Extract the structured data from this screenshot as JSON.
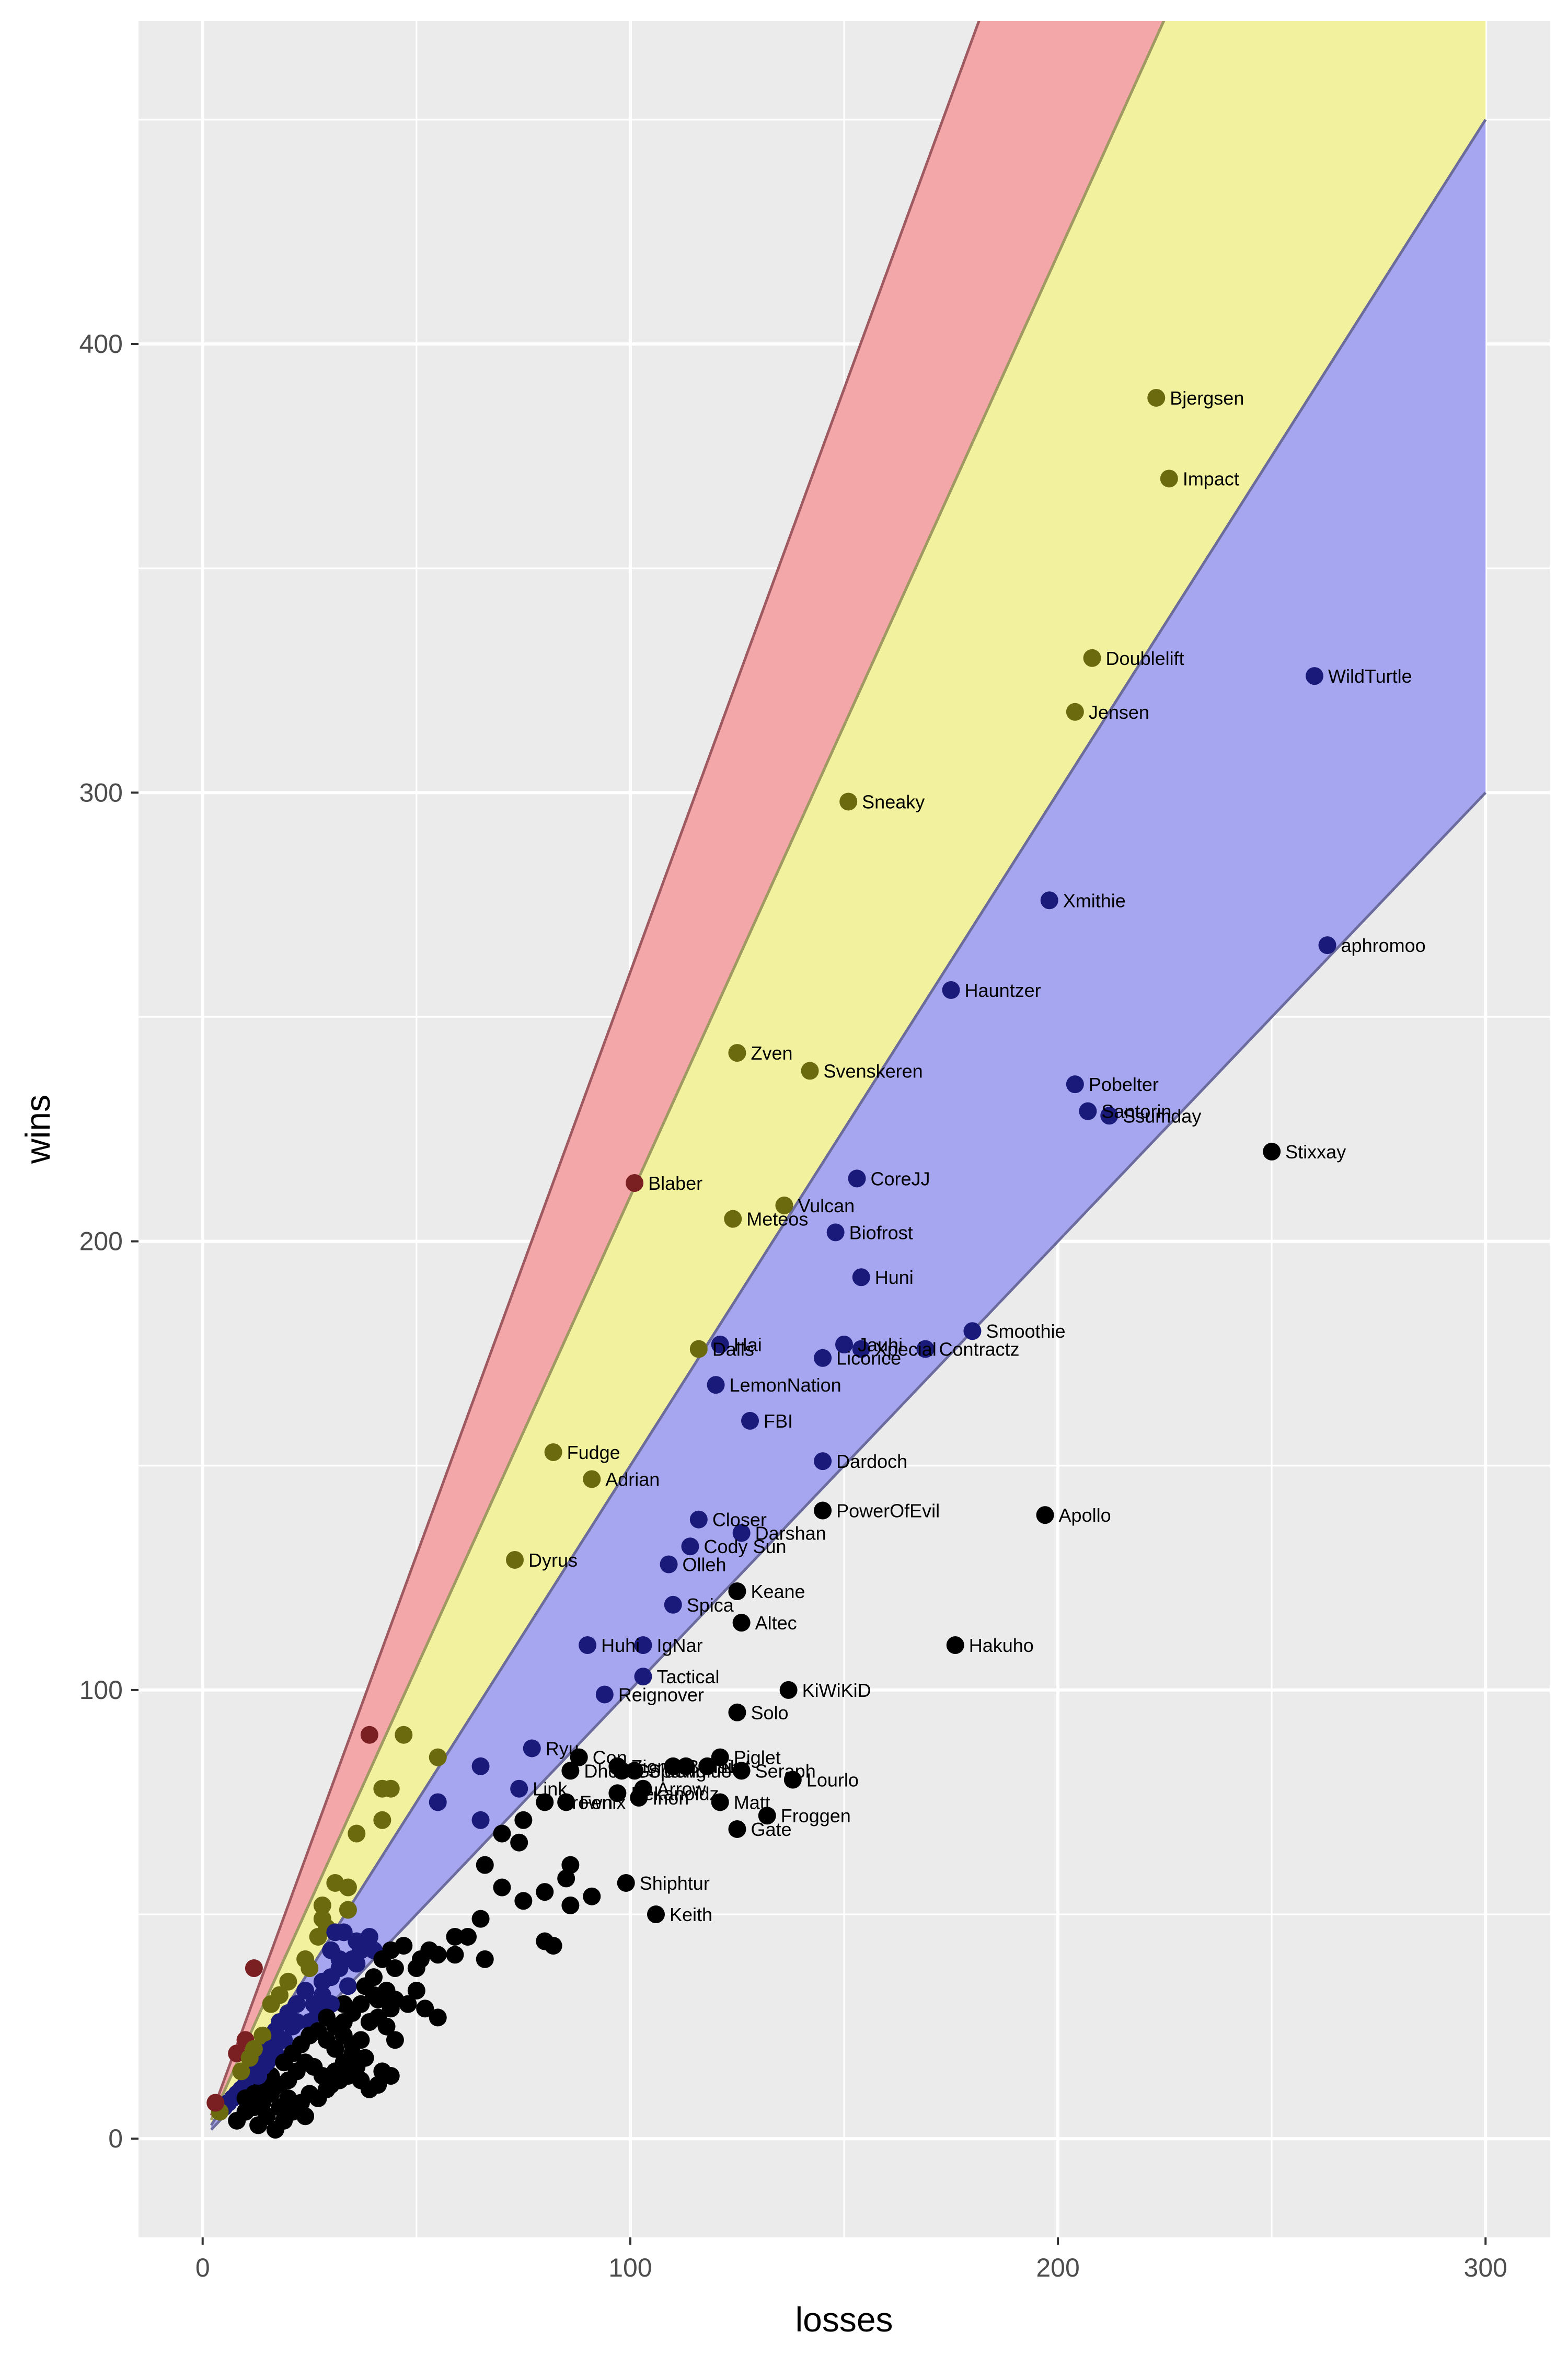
{
  "chart_data": {
    "type": "scatter",
    "title": "",
    "xlabel": "losses",
    "ylabel": "wins",
    "xlim": [
      -15,
      315
    ],
    "ylim": [
      -22,
      472
    ],
    "x_ticks": [
      0,
      100,
      200,
      300
    ],
    "y_ticks": [
      0,
      100,
      200,
      300,
      400
    ],
    "grid": true,
    "legend": "none",
    "colors": {
      "panel": "#ebebeb",
      "grid": "#ffffff",
      "red_band": "#f4a7a8",
      "yellow_band": "#f2f19e",
      "blue_band": "#a6a6f0",
      "red_line": "#9e5a60",
      "yellow_line": "#9e9a62",
      "blue_line": "#6b6b9e",
      "point_red": "#7a1f22",
      "point_yellow": "#6b6a0f",
      "point_blue": "#1a1a7a",
      "point_black": "#000000"
    },
    "bands": [
      {
        "name": "",
        "color": "red_band",
        "slope_low": 2.1,
        "slope_high": 2.6,
        "line": "red_line"
      },
      {
        "name": "",
        "color": "yellow_band",
        "slope_low": 1.5,
        "slope_high": 2.1,
        "line": "yellow_line"
      },
      {
        "name": "",
        "color": "blue_band",
        "slope_low": 1.0,
        "slope_high": 1.5,
        "line": "blue_line"
      }
    ],
    "band_x_range": [
      2,
      300
    ],
    "labeled_points": [
      {
        "label": "Bjergsen",
        "x": 223,
        "y": 388
      },
      {
        "label": "Impact",
        "x": 226,
        "y": 370
      },
      {
        "label": "Doublelift",
        "x": 208,
        "y": 330
      },
      {
        "label": "Jensen",
        "x": 204,
        "y": 318
      },
      {
        "label": "WildTurtle",
        "x": 260,
        "y": 326
      },
      {
        "label": "Sneaky",
        "x": 151,
        "y": 298
      },
      {
        "label": "Xmithie",
        "x": 198,
        "y": 276
      },
      {
        "label": "aphromoo",
        "x": 263,
        "y": 266
      },
      {
        "label": "Hauntzer",
        "x": 175,
        "y": 256
      },
      {
        "label": "Zven",
        "x": 125,
        "y": 242
      },
      {
        "label": "Svenskeren",
        "x": 142,
        "y": 238
      },
      {
        "label": "Pobelter",
        "x": 204,
        "y": 235
      },
      {
        "label": "Santorin",
        "x": 207,
        "y": 229
      },
      {
        "label": "Ssumday",
        "x": 212,
        "y": 228
      },
      {
        "label": "Stixxay",
        "x": 250,
        "y": 220
      },
      {
        "label": "Blaber",
        "x": 101,
        "y": 213
      },
      {
        "label": "CoreJJ",
        "x": 153,
        "y": 214
      },
      {
        "label": "Vulcan",
        "x": 136,
        "y": 208
      },
      {
        "label": "Meteos",
        "x": 124,
        "y": 205
      },
      {
        "label": "Biofrost",
        "x": 148,
        "y": 202
      },
      {
        "label": "Huni",
        "x": 154,
        "y": 192
      },
      {
        "label": "Smoothie",
        "x": 180,
        "y": 180
      },
      {
        "label": "Hai",
        "x": 121,
        "y": 177
      },
      {
        "label": "Dalls",
        "x": 116,
        "y": 176
      },
      {
        "label": "Jauhi",
        "x": 150,
        "y": 177
      },
      {
        "label": "Xpecial",
        "x": 154,
        "y": 176
      },
      {
        "label": "Contractz",
        "x": 169,
        "y": 176
      },
      {
        "label": "Licorice",
        "x": 145,
        "y": 174
      },
      {
        "label": "LemonNation",
        "x": 120,
        "y": 168
      },
      {
        "label": "FBI",
        "x": 128,
        "y": 160
      },
      {
        "label": "Fudge",
        "x": 82,
        "y": 153
      },
      {
        "label": "Dardoch",
        "x": 145,
        "y": 151
      },
      {
        "label": "Adrian",
        "x": 91,
        "y": 147
      },
      {
        "label": "PowerOfEvil",
        "x": 145,
        "y": 140
      },
      {
        "label": "Apollo",
        "x": 197,
        "y": 139
      },
      {
        "label": "Closer",
        "x": 116,
        "y": 138
      },
      {
        "label": "Darshan",
        "x": 126,
        "y": 135
      },
      {
        "label": "Cody Sun",
        "x": 114,
        "y": 132
      },
      {
        "label": "Dyrus",
        "x": 73,
        "y": 129
      },
      {
        "label": "Olleh",
        "x": 109,
        "y": 128
      },
      {
        "label": "Keane",
        "x": 125,
        "y": 122
      },
      {
        "label": "Spica",
        "x": 110,
        "y": 119
      },
      {
        "label": "Altec",
        "x": 126,
        "y": 115
      },
      {
        "label": "Huhi",
        "x": 90,
        "y": 110
      },
      {
        "label": "IgNar",
        "x": 103,
        "y": 110
      },
      {
        "label": "Hakuho",
        "x": 176,
        "y": 110
      },
      {
        "label": "Tactical",
        "x": 103,
        "y": 103
      },
      {
        "label": "Reignover",
        "x": 94,
        "y": 99
      },
      {
        "label": "KiWiKiD",
        "x": 137,
        "y": 100
      },
      {
        "label": "Solo",
        "x": 125,
        "y": 95
      },
      {
        "label": "Ryu",
        "x": 77,
        "y": 87
      },
      {
        "label": "Piglet",
        "x": 121,
        "y": 85
      },
      {
        "label": "Con",
        "x": 88,
        "y": 85
      },
      {
        "label": "Zion",
        "x": 97,
        "y": 83
      },
      {
        "label": "Spawn",
        "x": 101,
        "y": 82
      },
      {
        "label": "Balls",
        "x": 110,
        "y": 83
      },
      {
        "label": "Ninja",
        "x": 113,
        "y": 83
      },
      {
        "label": "Ngt",
        "x": 118,
        "y": 83
      },
      {
        "label": "Dhokla",
        "x": 86,
        "y": 82
      },
      {
        "label": "Goldenglue",
        "x": 98,
        "y": 82
      },
      {
        "label": "Seraph",
        "x": 126,
        "y": 82
      },
      {
        "label": "Lourlo",
        "x": 138,
        "y": 80
      },
      {
        "label": "Link",
        "x": 74,
        "y": 78
      },
      {
        "label": "Arrow",
        "x": 103,
        "y": 78
      },
      {
        "label": "Pekanoidz",
        "x": 97,
        "y": 77
      },
      {
        "label": "Inori",
        "x": 102,
        "y": 76
      },
      {
        "label": "Matt",
        "x": 121,
        "y": 75
      },
      {
        "label": "Crown",
        "x": 80,
        "y": 75
      },
      {
        "label": "Fenix",
        "x": 85,
        "y": 75
      },
      {
        "label": "Froggen",
        "x": 132,
        "y": 72
      },
      {
        "label": "Gate",
        "x": 125,
        "y": 69
      },
      {
        "label": "Shiphtur",
        "x": 99,
        "y": 57
      },
      {
        "label": "Keith",
        "x": 106,
        "y": 50
      }
    ],
    "labeled_point_text_hidden_overlaps": [
      "Spawn",
      "Balls",
      "Ninja",
      "Ngt",
      "Goldenglue",
      "Crown",
      "Fenix",
      "Inori",
      "Pekanoidz"
    ],
    "unlabeled_points": [
      [
        39,
        90
      ],
      [
        47,
        90
      ],
      [
        55,
        85
      ],
      [
        65,
        83
      ],
      [
        44,
        78
      ],
      [
        42,
        78
      ],
      [
        55,
        75
      ],
      [
        36,
        68
      ],
      [
        42,
        71
      ],
      [
        65,
        71
      ],
      [
        75,
        71
      ],
      [
        66,
        61
      ],
      [
        70,
        68
      ],
      [
        74,
        66
      ],
      [
        86,
        61
      ],
      [
        85,
        58
      ],
      [
        91,
        54
      ],
      [
        86,
        52
      ],
      [
        75,
        53
      ],
      [
        70,
        56
      ],
      [
        80,
        55
      ],
      [
        65,
        49
      ],
      [
        59,
        45
      ],
      [
        62,
        45
      ],
      [
        53,
        42
      ],
      [
        47,
        43
      ],
      [
        44,
        42
      ],
      [
        51,
        40
      ],
      [
        50,
        38
      ],
      [
        55,
        41
      ],
      [
        59,
        41
      ],
      [
        66,
        40
      ],
      [
        82,
        43
      ],
      [
        80,
        44
      ],
      [
        34,
        56
      ],
      [
        31,
        57
      ],
      [
        28,
        52
      ],
      [
        34,
        51
      ],
      [
        28,
        49
      ],
      [
        29,
        47
      ],
      [
        27,
        45
      ],
      [
        31,
        46
      ],
      [
        25,
        38
      ],
      [
        33,
        46
      ],
      [
        36,
        44
      ],
      [
        37,
        42
      ],
      [
        35,
        40
      ],
      [
        39,
        45
      ],
      [
        40,
        42
      ],
      [
        42,
        40
      ],
      [
        45,
        38
      ],
      [
        36,
        39
      ],
      [
        32,
        38
      ],
      [
        30,
        36
      ],
      [
        34,
        34
      ],
      [
        38,
        34
      ],
      [
        40,
        36
      ],
      [
        43,
        33
      ],
      [
        45,
        31
      ],
      [
        48,
        30
      ],
      [
        52,
        29
      ],
      [
        55,
        27
      ],
      [
        50,
        33
      ],
      [
        44,
        29
      ],
      [
        41,
        31
      ],
      [
        33,
        30
      ],
      [
        30,
        30
      ],
      [
        28,
        32
      ],
      [
        24,
        33
      ],
      [
        22,
        30
      ],
      [
        20,
        28
      ],
      [
        18,
        26
      ],
      [
        17,
        24
      ],
      [
        15,
        22
      ],
      [
        14,
        20
      ],
      [
        13,
        18
      ],
      [
        12,
        16
      ],
      [
        11,
        14
      ],
      [
        10,
        12
      ],
      [
        9,
        11
      ],
      [
        8,
        10
      ],
      [
        7,
        9
      ],
      [
        6,
        8
      ],
      [
        5,
        7
      ],
      [
        4,
        6
      ],
      [
        3,
        8
      ],
      [
        12,
        38
      ],
      [
        8,
        19
      ],
      [
        10,
        22
      ],
      [
        14,
        23
      ],
      [
        16,
        20
      ],
      [
        19,
        22
      ],
      [
        21,
        25
      ],
      [
        25,
        26
      ],
      [
        27,
        28
      ],
      [
        29,
        27
      ],
      [
        31,
        25
      ],
      [
        33,
        23
      ],
      [
        35,
        21
      ],
      [
        37,
        22
      ],
      [
        39,
        26
      ],
      [
        41,
        27
      ],
      [
        43,
        25
      ],
      [
        45,
        22
      ],
      [
        38,
        18
      ],
      [
        36,
        16
      ],
      [
        34,
        14
      ],
      [
        32,
        13
      ],
      [
        30,
        12
      ],
      [
        28,
        14
      ],
      [
        26,
        16
      ],
      [
        24,
        17
      ],
      [
        22,
        15
      ],
      [
        20,
        13
      ],
      [
        18,
        12
      ],
      [
        16,
        10
      ],
      [
        14,
        8
      ],
      [
        12,
        7
      ],
      [
        10,
        6
      ],
      [
        8,
        4
      ],
      [
        13,
        3
      ],
      [
        15,
        5
      ],
      [
        17,
        2
      ],
      [
        19,
        4
      ],
      [
        21,
        6
      ],
      [
        23,
        8
      ],
      [
        25,
        10
      ],
      [
        27,
        9
      ],
      [
        29,
        11
      ],
      [
        31,
        15
      ],
      [
        33,
        17
      ],
      [
        35,
        19
      ],
      [
        37,
        13
      ],
      [
        39,
        11
      ],
      [
        41,
        12
      ],
      [
        44,
        14
      ],
      [
        42,
        15
      ],
      [
        24,
        5
      ],
      [
        20,
        9
      ],
      [
        18,
        7
      ],
      [
        16,
        14
      ],
      [
        14,
        12
      ],
      [
        12,
        10
      ],
      [
        10,
        9
      ],
      [
        15,
        17
      ],
      [
        17,
        19
      ],
      [
        19,
        17
      ],
      [
        21,
        19
      ],
      [
        23,
        21
      ],
      [
        25,
        23
      ],
      [
        27,
        24
      ],
      [
        29,
        22
      ],
      [
        31,
        20
      ],
      [
        33,
        26
      ],
      [
        35,
        28
      ],
      [
        37,
        30
      ],
      [
        40,
        32
      ],
      [
        14,
        16
      ],
      [
        12,
        20
      ],
      [
        11,
        18
      ],
      [
        13,
        14
      ],
      [
        9,
        15
      ],
      [
        20,
        35
      ],
      [
        24,
        40
      ],
      [
        30,
        42
      ],
      [
        28,
        35
      ],
      [
        32,
        40
      ],
      [
        16,
        30
      ],
      [
        22,
        26
      ],
      [
        26,
        30
      ],
      [
        18,
        32
      ]
    ],
    "unlabeled_point_colors": {
      "yellow": [
        [
          47,
          90
        ],
        [
          55,
          85
        ],
        [
          44,
          78
        ],
        [
          42,
          78
        ],
        [
          36,
          68
        ],
        [
          42,
          71
        ],
        [
          34,
          56
        ],
        [
          31,
          57
        ],
        [
          28,
          52
        ],
        [
          34,
          51
        ],
        [
          28,
          49
        ],
        [
          29,
          47
        ],
        [
          27,
          45
        ],
        [
          31,
          46
        ],
        [
          25,
          38
        ]
      ],
      "blue": [
        [
          65,
          83
        ],
        [
          55,
          75
        ],
        [
          65,
          71
        ],
        [
          33,
          46
        ],
        [
          36,
          44
        ],
        [
          37,
          42
        ],
        [
          39,
          45
        ],
        [
          35,
          40
        ],
        [
          40,
          42
        ],
        [
          32,
          38
        ],
        [
          30,
          36
        ],
        [
          24,
          33
        ],
        [
          28,
          32
        ],
        [
          22,
          30
        ],
        [
          20,
          28
        ],
        [
          18,
          26
        ],
        [
          17,
          24
        ],
        [
          15,
          22
        ],
        [
          14,
          20
        ],
        [
          13,
          18
        ],
        [
          16,
          20
        ],
        [
          19,
          22
        ],
        [
          21,
          25
        ],
        [
          25,
          26
        ],
        [
          14,
          16
        ],
        [
          12,
          20
        ],
        [
          11,
          18
        ],
        [
          15,
          17
        ],
        [
          17,
          19
        ]
      ],
      "red": [
        [
          39,
          90
        ],
        [
          8,
          19
        ],
        [
          10,
          22
        ],
        [
          14,
          23
        ]
      ]
    }
  }
}
